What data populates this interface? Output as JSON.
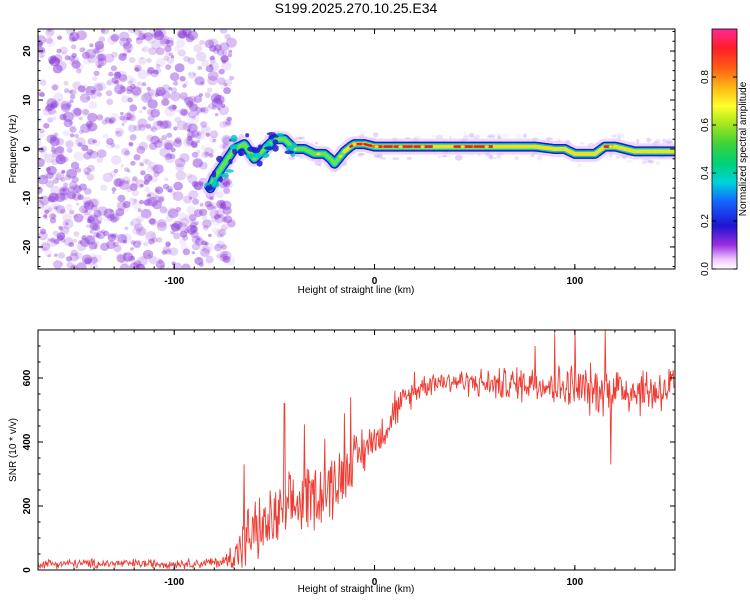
{
  "title": "S199.2025.270.10.25.E34",
  "colors": {
    "snr_line": "#ef3c33",
    "track_outer": "#1e1ec8",
    "track_mid": "#00c8c8",
    "track_inner": "#64e646",
    "track_core": "#e61e1e",
    "track_peak": "#ffff3c",
    "noise": "#8c3cdc"
  },
  "chart_data": [
    {
      "type": "heatmap",
      "title": "S199.2025.270.10.25.E34",
      "xlabel": "Height of straight line (km)",
      "ylabel": "Frequency (Hz)",
      "xlim": [
        -168,
        150
      ],
      "ylim": [
        -24.5,
        24.5
      ],
      "xticks": [
        -100,
        0,
        100
      ],
      "yticks": [
        -20,
        -10,
        0,
        10,
        20
      ],
      "colorbar": {
        "label": "Normalized spectral amplitude",
        "range": [
          0,
          1
        ],
        "ticks": [
          0.0,
          0.2,
          0.4,
          0.6,
          0.8
        ],
        "tick_labels": [
          "0.0",
          "0.2",
          "0.4",
          "0.6",
          "0.8"
        ],
        "colormap": "rainbow (white-violet to red-magenta)"
      },
      "ridge": {
        "x": [
          -82,
          -80,
          -75,
          -70,
          -65,
          -60,
          -55,
          -50,
          -45,
          -40,
          -35,
          -30,
          -25,
          -22,
          -20,
          -18,
          -15,
          -12,
          -10,
          -5,
          0,
          5,
          10,
          20,
          30,
          40,
          50,
          60,
          70,
          80,
          90,
          95,
          100,
          110,
          115,
          120,
          130,
          140,
          150
        ],
        "freq_hz": [
          -8,
          -6,
          -3,
          0,
          1,
          -2,
          0,
          2,
          2,
          0,
          0,
          -1,
          -1,
          -2,
          -3,
          -2,
          -0.5,
          0.5,
          1,
          1,
          0.5,
          0.5,
          0.5,
          0.5,
          0.5,
          0.5,
          0.5,
          0.5,
          0.5,
          0.5,
          0,
          0,
          -1,
          -1,
          0.5,
          0.5,
          -0.5,
          -0.5,
          -0.5
        ],
        "peak_amplitude": [
          0.2,
          0.25,
          0.3,
          0.3,
          0.3,
          0.3,
          0.3,
          0.35,
          0.35,
          0.4,
          0.4,
          0.35,
          0.35,
          0.3,
          0.3,
          0.35,
          0.5,
          0.8,
          0.9,
          0.9,
          0.9,
          0.9,
          0.9,
          0.9,
          0.6,
          0.6,
          0.9,
          0.9,
          0.5,
          0.9,
          0.5,
          0.5,
          0.5,
          0.5,
          0.8,
          0.8,
          0.5,
          0.5,
          0.5
        ]
      },
      "noise_region_x": [
        -168,
        -75
      ],
      "noise_amplitude_range": [
        0.0,
        0.15
      ]
    },
    {
      "type": "line",
      "xlabel": "Height of straight line (km)",
      "ylabel": "SNR (10 * v/v)",
      "xlim": [
        -168,
        150
      ],
      "ylim": [
        0,
        750
      ],
      "xticks": [
        -100,
        0,
        100
      ],
      "yticks": [
        0,
        200,
        400,
        600
      ],
      "series": [
        {
          "name": "SNR",
          "x": [
            -168,
            -150,
            -130,
            -110,
            -90,
            -75,
            -70,
            -65,
            -60,
            -55,
            -50,
            -45,
            -40,
            -35,
            -30,
            -25,
            -20,
            -15,
            -10,
            -5,
            0,
            5,
            10,
            15,
            20,
            25,
            30,
            40,
            50,
            60,
            70,
            80,
            90,
            100,
            110,
            120,
            130,
            140,
            150
          ],
          "mean": [
            20,
            20,
            20,
            20,
            20,
            25,
            50,
            90,
            120,
            130,
            160,
            170,
            200,
            220,
            240,
            240,
            270,
            300,
            340,
            380,
            400,
            440,
            490,
            530,
            560,
            580,
            590,
            590,
            585,
            580,
            580,
            590,
            570,
            570,
            560,
            570,
            560,
            560,
            570
          ],
          "spread": [
            15,
            15,
            15,
            15,
            15,
            20,
            60,
            100,
            100,
            100,
            110,
            110,
            110,
            110,
            110,
            110,
            110,
            100,
            90,
            80,
            70,
            60,
            50,
            50,
            40,
            40,
            40,
            40,
            45,
            50,
            60,
            60,
            70,
            80,
            80,
            80,
            80,
            80,
            80
          ],
          "max_spikes": [
            [
              -65,
              330
            ],
            [
              -45,
              520
            ],
            [
              -35,
              455
            ],
            [
              -25,
              410
            ],
            [
              -15,
              490
            ],
            [
              -12,
              540
            ],
            [
              0,
              440
            ],
            [
              10,
              560
            ],
            [
              20,
              620
            ],
            [
              80,
              700
            ],
            [
              90,
              740
            ],
            [
              100,
              750
            ],
            [
              115,
              750
            ],
            [
              118,
              330
            ]
          ]
        }
      ]
    }
  ]
}
